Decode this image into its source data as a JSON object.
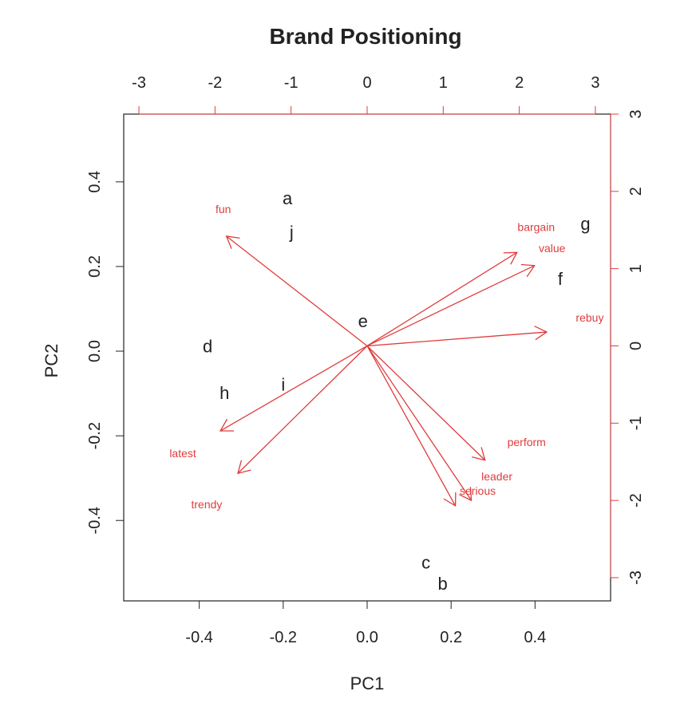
{
  "chart_data": {
    "type": "scatter",
    "subtype": "biplot",
    "title": "Brand Positioning",
    "xlabel": "PC1",
    "ylabel": "PC2",
    "primary_axes": {
      "xlim": [
        -0.58,
        0.58
      ],
      "ylim": [
        -0.59,
        0.56
      ],
      "x_ticks": [
        -0.4,
        -0.2,
        0.0,
        0.2,
        0.4
      ],
      "x_tick_labels": [
        "-0.4",
        "-0.2",
        "0.0",
        "0.2",
        "0.4"
      ],
      "y_ticks": [
        -0.4,
        -0.2,
        0.0,
        0.2,
        0.4
      ],
      "y_tick_labels": [
        "-0.4",
        "-0.2",
        "0.0",
        "0.2",
        "0.4"
      ],
      "color": "#222222"
    },
    "secondary_axes": {
      "xlim": [
        -3.2,
        3.2
      ],
      "ylim": [
        -3.3,
        3.0
      ],
      "x_ticks": [
        -3,
        -2,
        -1,
        0,
        1,
        2,
        3
      ],
      "x_tick_labels": [
        "-3",
        "-2",
        "-1",
        "0",
        "1",
        "2",
        "3"
      ],
      "y_ticks": [
        -3,
        -2,
        -1,
        0,
        1,
        2,
        3
      ],
      "y_tick_labels": [
        "-3",
        "-2",
        "-1",
        "0",
        "1",
        "2",
        "3"
      ],
      "color": "#e03c3c"
    },
    "observations": [
      {
        "label": "a",
        "x": -0.19,
        "y": 0.36
      },
      {
        "label": "j",
        "x": -0.18,
        "y": 0.28
      },
      {
        "label": "g",
        "x": 0.52,
        "y": 0.3
      },
      {
        "label": "f",
        "x": 0.46,
        "y": 0.17
      },
      {
        "label": "e",
        "x": -0.01,
        "y": 0.07
      },
      {
        "label": "d",
        "x": -0.38,
        "y": 0.01
      },
      {
        "label": "h",
        "x": -0.34,
        "y": -0.1
      },
      {
        "label": "i",
        "x": -0.2,
        "y": -0.08
      },
      {
        "label": "c",
        "x": 0.14,
        "y": -0.5
      },
      {
        "label": "b",
        "x": 0.18,
        "y": -0.55
      }
    ],
    "loadings": [
      {
        "name": "fun",
        "x": -1.85,
        "y": 1.42
      },
      {
        "name": "bargain",
        "x": 1.97,
        "y": 1.21
      },
      {
        "name": "value",
        "x": 2.2,
        "y": 1.04
      },
      {
        "name": "rebuy",
        "x": 2.36,
        "y": 0.18
      },
      {
        "name": "perform",
        "x": 1.55,
        "y": -1.48
      },
      {
        "name": "leader",
        "x": 1.37,
        "y": -2.0
      },
      {
        "name": "serious",
        "x": 1.16,
        "y": -2.07
      },
      {
        "name": "latest",
        "x": -1.93,
        "y": -1.1
      },
      {
        "name": "trendy",
        "x": -1.7,
        "y": -1.65
      }
    ],
    "grid": false,
    "legend": "none",
    "colors": {
      "points": "#222222",
      "arrows": "#e03c3c"
    }
  }
}
